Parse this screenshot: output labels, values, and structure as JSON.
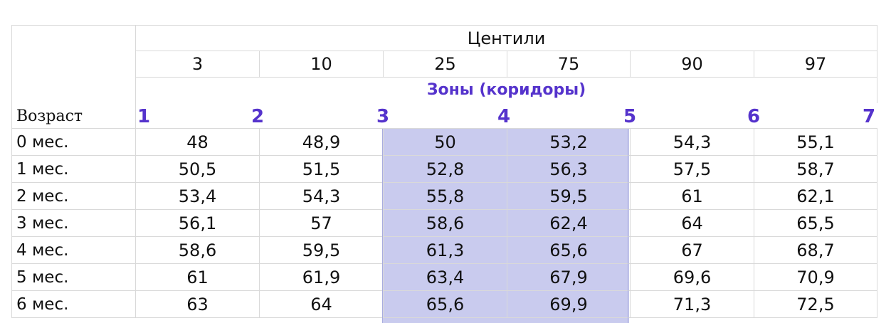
{
  "table": {
    "centiles_title": "Центили",
    "centiles": [
      "3",
      "10",
      "25",
      "75",
      "90",
      "97"
    ],
    "zones_title": "Зоны (коридоры)",
    "zones": [
      "1",
      "2",
      "3",
      "4",
      "5",
      "6",
      "7"
    ],
    "age_label": "Возраст",
    "rows": [
      {
        "age": "0 мес.",
        "values": [
          "48",
          "48,9",
          "50",
          "53,2",
          "54,3",
          "55,1"
        ]
      },
      {
        "age": "1 мес.",
        "values": [
          "50,5",
          "51,5",
          "52,8",
          "56,3",
          "57,5",
          "58,7"
        ]
      },
      {
        "age": "2 мес.",
        "values": [
          "53,4",
          "54,3",
          "55,8",
          "59,5",
          "61",
          "62,1"
        ]
      },
      {
        "age": "3 мес.",
        "values": [
          "56,1",
          "57",
          "58,6",
          "62,4",
          "64",
          "65,5"
        ]
      },
      {
        "age": "4 мес.",
        "values": [
          "58,6",
          "59,5",
          "61,3",
          "65,6",
          "67",
          "68,7"
        ]
      },
      {
        "age": "5 мес.",
        "values": [
          "61",
          "61,9",
          "63,4",
          "67,9",
          "69,6",
          "70,9"
        ]
      },
      {
        "age": "6 мес.",
        "values": [
          "63",
          "64",
          "65,6",
          "69,9",
          "71,3",
          "72,5"
        ]
      }
    ]
  },
  "colors": {
    "accent": "#5533cc",
    "highlight": "#c9cbee",
    "grid": "#d9d9d9"
  }
}
